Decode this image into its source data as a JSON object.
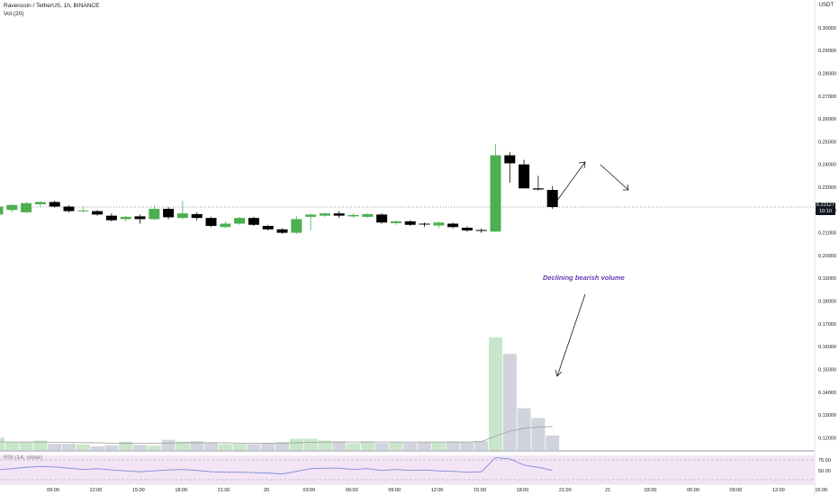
{
  "header": {
    "symbol_line": "Ravencoin / TetherUS, 1h, BINANCE",
    "volume_line": "Vol (20)",
    "rsi_line": "RSI (14, close)",
    "currency": "USDT"
  },
  "last_price": {
    "value": "0.22127",
    "countdown": "10:10"
  },
  "annotation": "Declining bearish volume",
  "colors": {
    "up": "#4caf50",
    "down": "#000000",
    "volume_up": "#c8e6c9",
    "volume_down": "#d1d4dc",
    "volume_ma": "#9e9e9e",
    "rsi_line": "#7e8bd6",
    "rsi_bg": "#f3e5f5",
    "arrow": "#131722",
    "annotation_text": "#673ab7"
  },
  "chart_data": {
    "type": "candlestick",
    "y_axis_labels": [
      "0.30000",
      "0.29000",
      "0.28000",
      "0.27000",
      "0.26000",
      "0.25000",
      "0.24000",
      "0.23000",
      "0.22000",
      "0.21000",
      "0.20000",
      "0.19000",
      "0.18000",
      "0.17000",
      "0.16000",
      "0.15000",
      "0.14000",
      "0.13000",
      "0.12000"
    ],
    "ylim": [
      0.1168,
      0.3033
    ],
    "rsi_axis_labels": [
      "75.00",
      "50.00"
    ],
    "x_axis_labels": [
      "09:00",
      "12:00",
      "15:00",
      "18:00",
      "21:00",
      "20",
      "03:00",
      "06:00",
      "09:00",
      "12:00",
      "15:00",
      "18:00",
      "21:00",
      "21",
      "03:00",
      "06:00",
      "09:00",
      "12:00",
      "15:00"
    ],
    "candles": [
      {
        "o": 0.218,
        "h": 0.223,
        "l": 0.2165,
        "c": 0.2215
      },
      {
        "o": 0.22,
        "h": 0.2225,
        "l": 0.219,
        "c": 0.2222
      },
      {
        "o": 0.219,
        "h": 0.2235,
        "l": 0.2185,
        "c": 0.223
      },
      {
        "o": 0.2225,
        "h": 0.224,
        "l": 0.2215,
        "c": 0.2235
      },
      {
        "o": 0.2235,
        "h": 0.224,
        "l": 0.221,
        "c": 0.2215
      },
      {
        "o": 0.2215,
        "h": 0.222,
        "l": 0.219,
        "c": 0.2195
      },
      {
        "o": 0.2195,
        "h": 0.2215,
        "l": 0.219,
        "c": 0.2198
      },
      {
        "o": 0.2195,
        "h": 0.22,
        "l": 0.2175,
        "c": 0.218
      },
      {
        "o": 0.2175,
        "h": 0.2185,
        "l": 0.215,
        "c": 0.2155
      },
      {
        "o": 0.216,
        "h": 0.2175,
        "l": 0.215,
        "c": 0.217
      },
      {
        "o": 0.2172,
        "h": 0.218,
        "l": 0.214,
        "c": 0.216
      },
      {
        "o": 0.216,
        "h": 0.222,
        "l": 0.2155,
        "c": 0.2205
      },
      {
        "o": 0.2205,
        "h": 0.2212,
        "l": 0.216,
        "c": 0.2168
      },
      {
        "o": 0.2165,
        "h": 0.224,
        "l": 0.216,
        "c": 0.2185
      },
      {
        "o": 0.2182,
        "h": 0.219,
        "l": 0.2155,
        "c": 0.2165
      },
      {
        "o": 0.2165,
        "h": 0.217,
        "l": 0.2125,
        "c": 0.213
      },
      {
        "o": 0.2125,
        "h": 0.215,
        "l": 0.212,
        "c": 0.214
      },
      {
        "o": 0.214,
        "h": 0.217,
        "l": 0.2135,
        "c": 0.2165
      },
      {
        "o": 0.2165,
        "h": 0.217,
        "l": 0.213,
        "c": 0.2135
      },
      {
        "o": 0.213,
        "h": 0.2135,
        "l": 0.211,
        "c": 0.2115
      },
      {
        "o": 0.2115,
        "h": 0.212,
        "l": 0.2095,
        "c": 0.21
      },
      {
        "o": 0.21,
        "h": 0.2175,
        "l": 0.2095,
        "c": 0.216
      },
      {
        "o": 0.217,
        "h": 0.2185,
        "l": 0.211,
        "c": 0.218
      },
      {
        "o": 0.2175,
        "h": 0.219,
        "l": 0.217,
        "c": 0.2185
      },
      {
        "o": 0.2185,
        "h": 0.2195,
        "l": 0.2165,
        "c": 0.2175
      },
      {
        "o": 0.2172,
        "h": 0.2185,
        "l": 0.2165,
        "c": 0.2178
      },
      {
        "o": 0.217,
        "h": 0.2185,
        "l": 0.2165,
        "c": 0.2182
      },
      {
        "o": 0.218,
        "h": 0.2185,
        "l": 0.214,
        "c": 0.2145
      },
      {
        "o": 0.2142,
        "h": 0.2155,
        "l": 0.2135,
        "c": 0.215
      },
      {
        "o": 0.215,
        "h": 0.2155,
        "l": 0.213,
        "c": 0.2135
      },
      {
        "o": 0.214,
        "h": 0.2145,
        "l": 0.2125,
        "c": 0.2138
      },
      {
        "o": 0.2132,
        "h": 0.215,
        "l": 0.212,
        "c": 0.2145
      },
      {
        "o": 0.214,
        "h": 0.2145,
        "l": 0.212,
        "c": 0.2125
      },
      {
        "o": 0.2122,
        "h": 0.2128,
        "l": 0.2105,
        "c": 0.211
      },
      {
        "o": 0.2112,
        "h": 0.2118,
        "l": 0.21,
        "c": 0.2108
      },
      {
        "o": 0.2105,
        "h": 0.249,
        "l": 0.2105,
        "c": 0.244
      },
      {
        "o": 0.244,
        "h": 0.2455,
        "l": 0.232,
        "c": 0.2405
      },
      {
        "o": 0.24,
        "h": 0.242,
        "l": 0.23,
        "c": 0.2295
      },
      {
        "o": 0.2295,
        "h": 0.235,
        "l": 0.2285,
        "c": 0.229
      },
      {
        "o": 0.2288,
        "h": 0.2305,
        "l": 0.2205,
        "c": 0.2213
      }
    ],
    "volume": [
      34,
      22,
      22,
      26,
      17,
      17,
      15,
      10,
      13,
      23,
      14,
      12,
      28,
      23,
      24,
      19,
      16,
      17,
      16,
      19,
      22,
      31,
      31,
      26,
      24,
      18,
      24,
      19,
      22,
      20,
      22,
      21,
      23,
      21,
      25,
      310,
      265,
      115,
      88,
      40
    ],
    "volume_ma": [
      22,
      22,
      22,
      22,
      21,
      21,
      20,
      20,
      19,
      19,
      19,
      19,
      19,
      20,
      20,
      20,
      20,
      19,
      19,
      19,
      19,
      20,
      21,
      22,
      22,
      22,
      22,
      22,
      22,
      22,
      22,
      22,
      22,
      22,
      23,
      38,
      52,
      60,
      63,
      65
    ],
    "rsi": [
      52,
      55,
      58,
      60,
      59,
      56,
      53,
      55,
      52,
      50,
      48,
      50,
      52,
      53,
      51,
      48,
      47,
      47,
      46,
      45,
      43,
      49,
      55,
      56,
      56,
      53,
      55,
      51,
      53,
      51,
      52,
      50,
      49,
      47,
      48,
      80,
      77,
      63,
      58,
      51
    ]
  }
}
